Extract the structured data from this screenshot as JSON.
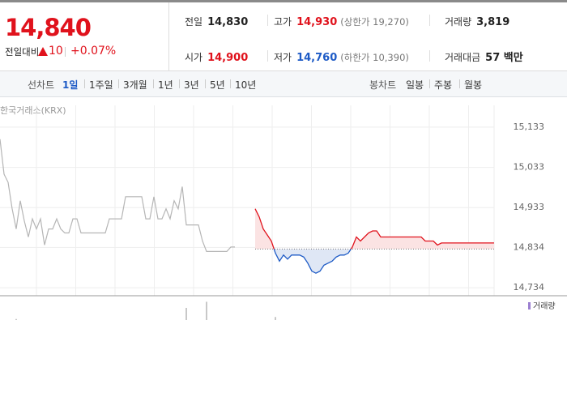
{
  "header": {
    "price": "14,840",
    "change_label": "전일대비",
    "change": "10",
    "change_pct": "+0.07%",
    "stats": [
      {
        "label": "전일",
        "value": "14,830"
      },
      {
        "label": "고가",
        "value": "14,930",
        "value_color": "#e0121c",
        "note": "(상한가 19,270)"
      },
      {
        "label": "거래량",
        "value": "3,819"
      },
      {
        "label": "시가",
        "value": "14,900",
        "value_color": "#e0121c"
      },
      {
        "label": "저가",
        "value": "14,760",
        "value_color": "#1e5bc6",
        "note": "(하한가 10,390)"
      },
      {
        "label": "거래대금",
        "value": "57 백만"
      }
    ]
  },
  "tabs": {
    "line_label": "선차트",
    "line_items": [
      "1일",
      "1주일",
      "3개월",
      "1년",
      "3년",
      "5년",
      "10년"
    ],
    "candle_label": "봉차트",
    "candle_items": [
      "일봉",
      "주봉",
      "월봉"
    ]
  },
  "chart_data": {
    "type": "line",
    "source": "한국거래소(KRX)",
    "xlim": [
      0,
      122
    ],
    "ylim": [
      14714,
      15157
    ],
    "grid": true,
    "yticks": [
      {
        "value": 15133,
        "label": "15,133"
      },
      {
        "value": 15033,
        "label": "15,033"
      },
      {
        "value": 14933,
        "label": "14,933"
      },
      {
        "value": 14834,
        "label": "14,834"
      },
      {
        "value": 14734,
        "label": "14,734"
      }
    ],
    "baseline": 14830,
    "up_color": "#e0121c",
    "down_color": "#1e5bc6",
    "up_fill": "#fbe3e3",
    "down_fill": "#dfe7f5",
    "series": [
      {
        "color": "#b5b5b5",
        "x": [
          0,
          1,
          2,
          3,
          4,
          5,
          6,
          7,
          8,
          9,
          10,
          11,
          12,
          13,
          14,
          15,
          16,
          17,
          18,
          19,
          20,
          21,
          22,
          23,
          24,
          25,
          26,
          27,
          28,
          29,
          30,
          31,
          32,
          33,
          34,
          35,
          36,
          37,
          38,
          39,
          40,
          41,
          42,
          43,
          44,
          45,
          46,
          47,
          48,
          49,
          50,
          51,
          52,
          53,
          54,
          55,
          56,
          57,
          58
        ],
        "values": [
          15103,
          15016,
          14996,
          14930,
          14880,
          14950,
          14900,
          14860,
          14905,
          14880,
          14905,
          14840,
          14880,
          14880,
          14905,
          14880,
          14870,
          14870,
          14905,
          14905,
          14870,
          14870,
          14870,
          14870,
          14870,
          14870,
          14870,
          14905,
          14905,
          14905,
          14905,
          14960,
          14960,
          14960,
          14960,
          14960,
          14905,
          14905,
          14960,
          14905,
          14905,
          14930,
          14905,
          14950,
          14930,
          14985,
          14890,
          14890,
          14890,
          14890,
          14850,
          14824,
          14824,
          14824,
          14824,
          14824,
          14824,
          14835,
          14835
        ]
      },
      {
        "color": "updown",
        "x": [
          63,
          64,
          65,
          66,
          67,
          68,
          69,
          70,
          71,
          72,
          73,
          74,
          75,
          76,
          77,
          78,
          79,
          80,
          81,
          82,
          83,
          84,
          85,
          86,
          87,
          88,
          89,
          90,
          91,
          92,
          93,
          94,
          95,
          96,
          97,
          98,
          99,
          100,
          101,
          102,
          103,
          104,
          105,
          106,
          107,
          108,
          109,
          110,
          111,
          112,
          113,
          114,
          115,
          116,
          117,
          118,
          119,
          120,
          121,
          122
        ],
        "values": [
          14930,
          14910,
          14880,
          14865,
          14850,
          14820,
          14800,
          14815,
          14805,
          14815,
          14815,
          14815,
          14810,
          14795,
          14775,
          14770,
          14775,
          14790,
          14795,
          14800,
          14810,
          14815,
          14815,
          14820,
          14835,
          14860,
          14850,
          14860,
          14870,
          14875,
          14875,
          14860,
          14860,
          14860,
          14860,
          14860,
          14860,
          14860,
          14860,
          14860,
          14860,
          14860,
          14850,
          14850,
          14850,
          14840,
          14845,
          14845,
          14845,
          14845,
          14845,
          14845,
          14845,
          14845,
          14845,
          14845,
          14845,
          14845,
          14845,
          14845
        ]
      }
    ],
    "volume": {
      "name": "거래량",
      "color": "#9b7fd1",
      "bar_color": "#b0b0b0",
      "ylim": [
        0,
        100
      ],
      "x": [
        4,
        46,
        51,
        68
      ],
      "values": [
        5,
        60,
        90,
        15
      ]
    }
  }
}
